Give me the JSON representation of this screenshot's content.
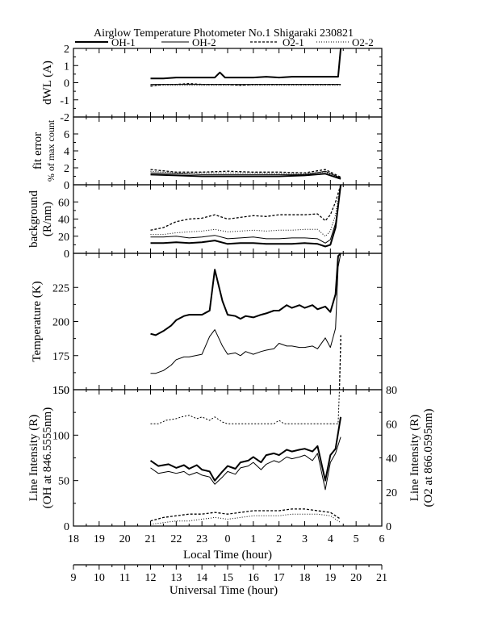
{
  "title": "Airglow Temperature Photometer No.1  Shigaraki  230821",
  "legend": [
    {
      "name": "OH-1",
      "style": "solid-thick"
    },
    {
      "name": "OH-2",
      "style": "solid-thin"
    },
    {
      "name": "O2-1",
      "style": "dashed"
    },
    {
      "name": "O2-2",
      "style": "dotted"
    }
  ],
  "x_axis_local": {
    "label": "Local Time (hour)",
    "ticks": [
      "18",
      "19",
      "20",
      "21",
      "22",
      "23",
      "0",
      "1",
      "2",
      "3",
      "4",
      "5",
      "6"
    ]
  },
  "x_axis_ut": {
    "label": "Universal Time (hour)",
    "ticks": [
      "9",
      "10",
      "11",
      "12",
      "13",
      "14",
      "15",
      "16",
      "17",
      "18",
      "19",
      "20",
      "21"
    ]
  },
  "chart_data": [
    {
      "type": "line",
      "panel": "dwl",
      "ylabel": "dWL (A)",
      "ylim": [
        -2,
        2
      ],
      "yticks": [
        "2",
        "1",
        "0",
        "-1",
        "-2"
      ],
      "series": [
        {
          "name": "OH-1",
          "x": [
            21.0,
            21.5,
            22.0,
            22.5,
            23.0,
            23.5,
            23.7,
            23.9,
            24.2,
            24.5,
            25.0,
            25.5,
            26.0,
            26.5,
            27.0,
            27.5,
            28.0,
            28.3,
            28.4
          ],
          "y": [
            0.25,
            0.25,
            0.3,
            0.3,
            0.3,
            0.3,
            0.6,
            0.3,
            0.3,
            0.3,
            0.3,
            0.35,
            0.3,
            0.35,
            0.35,
            0.35,
            0.35,
            0.35,
            2.0
          ]
        },
        {
          "name": "OH-2",
          "x": [
            21.0,
            21.5,
            22.0,
            23.0,
            24.0,
            25.0,
            26.0,
            27.0,
            28.0,
            28.4
          ],
          "y": [
            -0.1,
            -0.1,
            -0.1,
            -0.1,
            -0.1,
            -0.1,
            -0.1,
            -0.1,
            -0.1,
            -0.1
          ]
        },
        {
          "name": "O2-1",
          "x": [
            21.0,
            21.5,
            22.0,
            22.5,
            23.0,
            23.5,
            24.0,
            24.5,
            25.0,
            25.5,
            26.0,
            26.5,
            27.0,
            27.5,
            28.0,
            28.4
          ],
          "y": [
            -0.2,
            -0.1,
            -0.1,
            -0.05,
            -0.1,
            -0.1,
            -0.1,
            -0.15,
            -0.1,
            -0.1,
            -0.1,
            -0.1,
            -0.1,
            -0.1,
            -0.1,
            -0.1
          ]
        },
        {
          "name": "O2-2",
          "x": [
            21.0,
            22.0,
            23.0,
            24.0,
            25.0,
            26.0,
            27.0,
            28.0,
            28.4
          ],
          "y": [
            -0.15,
            -0.15,
            -0.15,
            -0.15,
            -0.15,
            -0.15,
            -0.15,
            -0.15,
            -0.15
          ]
        }
      ]
    },
    {
      "type": "line",
      "panel": "fit-error",
      "ylabel": "fit error",
      "ylabel2": "% of max count",
      "ylim": [
        0,
        8
      ],
      "yticks": [
        "6",
        "4",
        "2",
        "0"
      ],
      "series": [
        {
          "name": "OH-1",
          "x": [
            21.0,
            22.0,
            23.0,
            24.0,
            25.0,
            26.0,
            27.0,
            27.8,
            28.4
          ],
          "y": [
            1.2,
            1.1,
            1.0,
            1.0,
            1.0,
            1.0,
            1.1,
            1.3,
            0.7
          ]
        },
        {
          "name": "OH-2",
          "x": [
            21.0,
            22.0,
            23.0,
            24.0,
            25.0,
            26.0,
            27.0,
            27.8,
            28.4
          ],
          "y": [
            1.4,
            1.3,
            1.2,
            1.2,
            1.2,
            1.2,
            1.2,
            1.6,
            0.8
          ]
        },
        {
          "name": "O2-1",
          "x": [
            21.0,
            22.0,
            23.0,
            24.0,
            25.0,
            26.0,
            27.0,
            27.8,
            28.4
          ],
          "y": [
            1.8,
            1.5,
            1.5,
            1.6,
            1.5,
            1.5,
            1.4,
            1.8,
            0.9
          ]
        },
        {
          "name": "O2-2",
          "x": [
            21.0,
            22.0,
            23.0,
            24.0,
            25.0,
            26.0,
            27.0,
            27.8,
            28.4
          ],
          "y": [
            1.6,
            1.4,
            1.4,
            1.4,
            1.4,
            1.3,
            1.3,
            1.5,
            0.8
          ]
        }
      ]
    },
    {
      "type": "line",
      "panel": "background",
      "ylabel": "background",
      "ylabel2": "(R/nm)",
      "ylim": [
        0,
        80
      ],
      "yticks": [
        "60",
        "40",
        "20",
        "0"
      ],
      "series": [
        {
          "name": "OH-1",
          "x": [
            21.0,
            21.5,
            22.0,
            22.5,
            23.0,
            23.5,
            24.0,
            24.5,
            25.0,
            25.5,
            26.0,
            26.5,
            27.0,
            27.5,
            27.8,
            28.0,
            28.2,
            28.4
          ],
          "y": [
            12,
            12,
            13,
            12,
            13,
            15,
            11,
            12,
            12,
            11,
            11,
            11,
            12,
            11,
            8,
            10,
            30,
            80
          ]
        },
        {
          "name": "OH-2",
          "x": [
            21.0,
            21.5,
            22.0,
            22.5,
            23.0,
            23.5,
            24.0,
            24.5,
            25.0,
            25.5,
            26.0,
            26.5,
            27.0,
            27.5,
            27.8,
            28.0,
            28.2,
            28.4
          ],
          "y": [
            19,
            19,
            20,
            18,
            19,
            21,
            17,
            18,
            19,
            17,
            17,
            18,
            18,
            17,
            12,
            16,
            35,
            80
          ]
        },
        {
          "name": "O2-1",
          "x": [
            21.0,
            21.5,
            22.0,
            22.5,
            23.0,
            23.5,
            24.0,
            24.5,
            25.0,
            25.5,
            26.0,
            26.5,
            27.0,
            27.5,
            27.8,
            28.0,
            28.2,
            28.4
          ],
          "y": [
            27,
            30,
            37,
            40,
            41,
            45,
            40,
            42,
            44,
            43,
            45,
            45,
            45,
            46,
            38,
            45,
            60,
            80
          ]
        },
        {
          "name": "O2-2",
          "x": [
            21.0,
            21.5,
            22.0,
            22.5,
            23.0,
            23.5,
            24.0,
            24.5,
            25.0,
            25.5,
            26.0,
            26.5,
            27.0,
            27.5,
            27.8,
            28.0,
            28.2,
            28.4
          ],
          "y": [
            22,
            22,
            24,
            25,
            26,
            28,
            25,
            26,
            27,
            26,
            27,
            27,
            28,
            28,
            20,
            26,
            45,
            80
          ]
        }
      ]
    },
    {
      "type": "line",
      "panel": "temperature",
      "ylabel": "Temperature (K)",
      "ylim": [
        150,
        250
      ],
      "yticks": [
        "225",
        "200",
        "175",
        "150"
      ],
      "series": [
        {
          "name": "OH-1",
          "x": [
            21.0,
            21.2,
            21.5,
            21.8,
            22.0,
            22.3,
            22.5,
            23.0,
            23.3,
            23.5,
            23.8,
            24.0,
            24.3,
            24.5,
            24.7,
            25.0,
            25.3,
            25.5,
            25.8,
            26.0,
            26.3,
            26.5,
            26.8,
            27.0,
            27.3,
            27.5,
            27.8,
            28.0,
            28.2,
            28.3,
            28.4
          ],
          "y": [
            191,
            190,
            193,
            197,
            201,
            204,
            205,
            205,
            208,
            238,
            215,
            205,
            204,
            202,
            204,
            203,
            205,
            206,
            208,
            208,
            212,
            210,
            212,
            210,
            212,
            209,
            211,
            207,
            220,
            248,
            250
          ]
        },
        {
          "name": "OH-2",
          "x": [
            21.0,
            21.2,
            21.5,
            21.8,
            22.0,
            22.3,
            22.5,
            23.0,
            23.3,
            23.5,
            23.8,
            24.0,
            24.3,
            24.5,
            24.7,
            25.0,
            25.3,
            25.5,
            25.8,
            26.0,
            26.3,
            26.5,
            26.8,
            27.0,
            27.3,
            27.5,
            27.8,
            28.0,
            28.2,
            28.3,
            28.4
          ],
          "y": [
            162,
            162,
            164,
            168,
            172,
            174,
            174,
            176,
            189,
            194,
            182,
            176,
            177,
            175,
            178,
            176,
            178,
            179,
            180,
            184,
            182,
            182,
            181,
            181,
            182,
            180,
            188,
            181,
            195,
            240,
            250
          ]
        },
        {
          "name": "O2-1",
          "x": [
            28.35,
            28.4,
            28.4
          ],
          "y": [
            150,
            185,
            190
          ]
        }
      ]
    },
    {
      "type": "line",
      "panel": "line-intensity",
      "ylabel": "Line Intensity (R)",
      "ylabel2": "(OH at 846.5555nm)",
      "ylabel_right": "Line Intensity (R)",
      "ylabel_right2": "(O2 at 866.0595nm)",
      "ylim": [
        0,
        150
      ],
      "ylim_right": [
        0,
        80
      ],
      "yticks": [
        "150",
        "100",
        "50",
        "0"
      ],
      "yticks_right": [
        "80",
        "60",
        "40",
        "20",
        "0"
      ],
      "series": [
        {
          "name": "OH-1",
          "axis": "left",
          "x": [
            21.0,
            21.3,
            21.7,
            22.0,
            22.3,
            22.5,
            22.8,
            23.0,
            23.3,
            23.5,
            23.8,
            24.0,
            24.3,
            24.5,
            24.8,
            25.0,
            25.3,
            25.5,
            25.8,
            26.0,
            26.3,
            26.5,
            26.8,
            27.0,
            27.3,
            27.5,
            27.8,
            28.0,
            28.2,
            28.4
          ],
          "y": [
            72,
            66,
            68,
            64,
            67,
            63,
            67,
            62,
            60,
            50,
            60,
            66,
            63,
            70,
            72,
            76,
            70,
            78,
            80,
            78,
            84,
            82,
            84,
            85,
            82,
            88,
            50,
            78,
            85,
            120
          ]
        },
        {
          "name": "OH-2",
          "axis": "left",
          "x": [
            21.0,
            21.3,
            21.7,
            22.0,
            22.3,
            22.5,
            22.8,
            23.0,
            23.3,
            23.5,
            23.8,
            24.0,
            24.3,
            24.5,
            24.8,
            25.0,
            25.3,
            25.5,
            25.8,
            26.0,
            26.3,
            26.5,
            26.8,
            27.0,
            27.3,
            27.5,
            27.8,
            28.0,
            28.2,
            28.4
          ],
          "y": [
            64,
            58,
            60,
            58,
            60,
            56,
            59,
            56,
            54,
            46,
            54,
            60,
            57,
            64,
            66,
            70,
            62,
            68,
            72,
            70,
            76,
            74,
            76,
            78,
            72,
            80,
            40,
            70,
            80,
            98
          ]
        },
        {
          "name": "O2-1",
          "axis": "right",
          "x": [
            21.0,
            21.5,
            22.0,
            22.5,
            23.0,
            23.5,
            24.0,
            24.5,
            25.0,
            25.5,
            26.0,
            26.5,
            27.0,
            27.5,
            28.0,
            28.2,
            28.4
          ],
          "y": [
            3,
            5,
            6,
            7,
            7,
            8,
            7,
            8,
            9,
            9,
            9,
            10,
            10,
            9,
            8,
            6,
            4
          ]
        },
        {
          "name": "O2-2",
          "axis": "right",
          "x": [
            21.0,
            21.5,
            22.0,
            22.5,
            23.0,
            23.5,
            24.0,
            24.5,
            25.0,
            25.5,
            26.0,
            26.5,
            27.0,
            27.5,
            28.0,
            28.2,
            28.4
          ],
          "y": [
            1,
            2,
            3,
            3,
            4,
            5,
            4,
            5,
            6,
            6,
            6,
            7,
            7,
            7,
            6,
            4,
            2
          ]
        },
        {
          "name": "O2-2-top",
          "axis": "right",
          "x": [
            21.0,
            21.3,
            21.6,
            22.0,
            22.2,
            22.5,
            22.8,
            23.0,
            23.3,
            23.5,
            23.8,
            24.0,
            25.0,
            25.8,
            26.0,
            26.2,
            26.5,
            27.0,
            28.0,
            28.2,
            28.3,
            28.35
          ],
          "y": [
            60,
            60,
            62,
            63,
            64,
            65,
            63,
            64,
            62,
            64,
            61,
            60,
            60,
            60,
            62,
            60,
            60,
            60,
            60,
            60,
            60,
            80
          ]
        }
      ]
    }
  ]
}
